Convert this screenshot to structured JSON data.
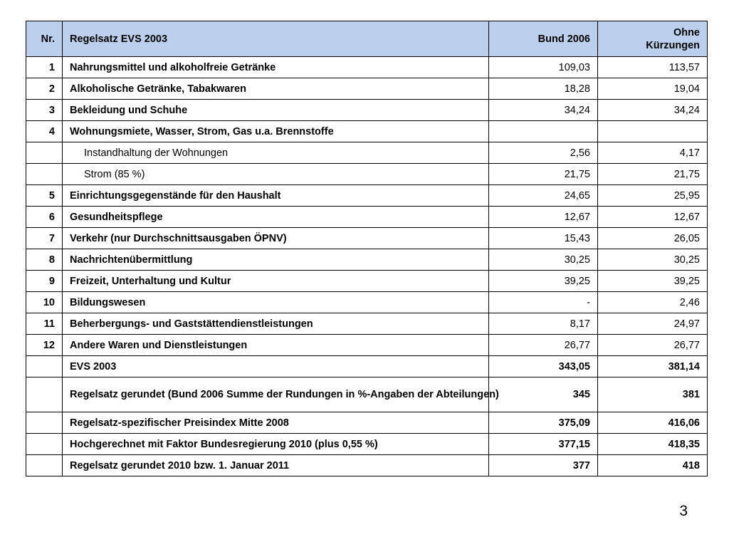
{
  "table": {
    "headers": {
      "nr": "Nr.",
      "label": "Regelsatz EVS 2003",
      "bund": "Bund 2006",
      "ohne": "Ohne Kürzungen"
    },
    "rows": [
      {
        "nr": "1",
        "label": "Nahrungsmittel und alkoholfreie Getränke",
        "bund": "109,03",
        "ohne": "113,57"
      },
      {
        "nr": "2",
        "label": "Alkoholische Getränke, Tabakwaren",
        "bund": "18,28",
        "ohne": "19,04"
      },
      {
        "nr": "3",
        "label": "Bekleidung und Schuhe",
        "bund": "34,24",
        "ohne": "34,24"
      },
      {
        "nr": "4",
        "label": "Wohnungsmiete, Wasser, Strom, Gas u.a. Brennstoffe",
        "bund": "",
        "ohne": ""
      },
      {
        "nr": "",
        "label": "Instandhaltung der Wohnungen",
        "bund": "2,56",
        "ohne": "4,17"
      },
      {
        "nr": "",
        "label": "Strom (85 %)",
        "bund": "21,75",
        "ohne": "21,75"
      },
      {
        "nr": "5",
        "label": "Einrichtungsgegenstände für den Haushalt",
        "bund": "24,65",
        "ohne": "25,95"
      },
      {
        "nr": "6",
        "label": "Gesundheitspflege",
        "bund": "12,67",
        "ohne": "12,67"
      },
      {
        "nr": "7",
        "label": "Verkehr (nur Durchschnittsausgaben ÖPNV)",
        "bund": "15,43",
        "ohne": "26,05"
      },
      {
        "nr": "8",
        "label": "Nachrichtenübermittlung",
        "bund": "30,25",
        "ohne": "30,25"
      },
      {
        "nr": "9",
        "label": "Freizeit, Unterhaltung und Kultur",
        "bund": "39,25",
        "ohne": "39,25"
      },
      {
        "nr": "10",
        "label": "Bildungswesen",
        "bund": "-",
        "ohne": "2,46"
      },
      {
        "nr": "11",
        "label": "Beherbergungs- und Gaststättendienstleistungen",
        "bund": "8,17",
        "ohne": "24,97"
      },
      {
        "nr": "12",
        "label": "Andere Waren und Dienstleistungen",
        "bund": "26,77",
        "ohne": "26,77"
      }
    ],
    "summary": [
      {
        "nr": "",
        "label": "EVS 2003",
        "bund": "343,05",
        "ohne": "381,14"
      },
      {
        "nr": "",
        "label": "Regelsatz gerundet (Bund 2006 Summe der Rundungen in %-Angaben der Abteilungen)",
        "bund": "345",
        "ohne": "381"
      },
      {
        "nr": "",
        "label": "Regelsatz-spezifischer Preisindex Mitte 2008",
        "bund": "375,09",
        "ohne": "416,06"
      },
      {
        "nr": "",
        "label": "Hochgerechnet mit Faktor Bundesregierung 2010 (plus 0,55 %)",
        "bund": "377,15",
        "ohne": "418,35"
      },
      {
        "nr": "",
        "label": "Regelsatz gerundet 2010 bzw. 1. Januar 2011",
        "bund": "377",
        "ohne": "418"
      }
    ]
  },
  "page_number": "3"
}
